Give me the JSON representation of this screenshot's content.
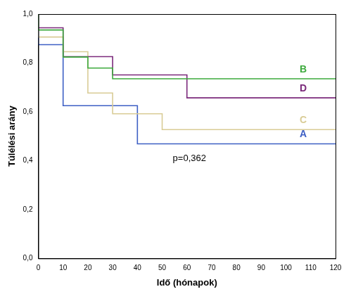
{
  "chart_data": {
    "type": "line",
    "line_style": "step",
    "x_label": "Idő (hónapok)",
    "y_label": "Túlélési arány",
    "xlim": [
      0,
      120
    ],
    "xticks": [
      0,
      10,
      20,
      30,
      40,
      50,
      60,
      70,
      80,
      90,
      100,
      110,
      120
    ],
    "ylim": [
      0,
      1
    ],
    "yticks": [
      {
        "value": 0,
        "label": "0,0"
      },
      {
        "value": 0.2,
        "label": "0,2"
      },
      {
        "value": 0.4,
        "label": "0,4"
      },
      {
        "value": 0.6,
        "label": "0,6"
      },
      {
        "value": 0.8,
        "label": "0,8"
      },
      {
        "value": 1,
        "label": "1,0"
      }
    ],
    "grid": false,
    "annotations": [
      {
        "text": "p=0,362",
        "x": 61,
        "y": 0.41
      }
    ],
    "series": [
      {
        "name": "B",
        "color": "#3daa3d",
        "x": [
          0,
          10,
          20,
          30,
          40,
          120
        ],
        "values": [
          1,
          0.935,
          0.824,
          0.779,
          0.735,
          0.735
        ]
      },
      {
        "name": "D",
        "color": "#7b2a7b",
        "x": [
          0,
          10,
          30,
          60,
          80,
          120
        ],
        "values": [
          1,
          0.944,
          0.826,
          0.751,
          0.657,
          0.657
        ]
      },
      {
        "name": "C",
        "color": "#d9cc96",
        "x": [
          0,
          10,
          20,
          30,
          50,
          70,
          120
        ],
        "values": [
          1,
          0.906,
          0.846,
          0.677,
          0.592,
          0.527,
          0.527
        ]
      },
      {
        "name": "A",
        "color": "#3d5fc4",
        "x": [
          0,
          10,
          40,
          100,
          120
        ],
        "values": [
          1,
          0.875,
          0.625,
          0.469,
          0.469
        ]
      }
    ]
  }
}
